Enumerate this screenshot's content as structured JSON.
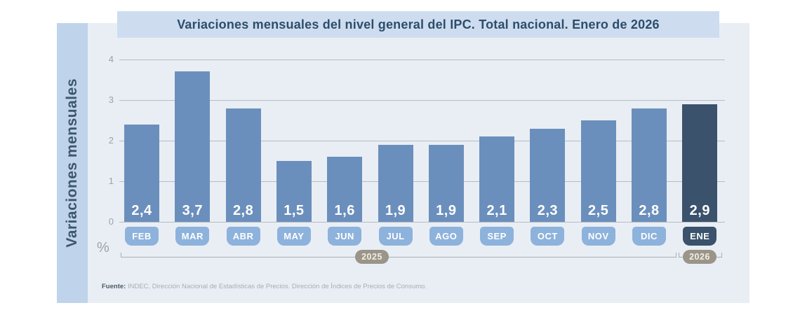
{
  "title": "Variaciones mensuales del nivel general del IPC. Total nacional. Enero de 2026",
  "y_axis_label": "Variaciones mensuales",
  "unit_label": "%",
  "source": {
    "prefix": "Fuente:",
    "text": " INDEC, Dirección Nacional de Estadísticas de Precios. Dirección de Índices de Precios de Consumo."
  },
  "chart_data": {
    "type": "bar",
    "title": "Variaciones mensuales del nivel general del IPC. Total nacional. Enero de 2026",
    "ylabel": "Variaciones mensuales",
    "unit": "%",
    "categories": [
      "FEB",
      "MAR",
      "ABR",
      "MAY",
      "JUN",
      "JUL",
      "AGO",
      "SEP",
      "OCT",
      "NOV",
      "DIC",
      "ENE"
    ],
    "values": [
      2.4,
      3.7,
      2.8,
      1.5,
      1.6,
      1.9,
      1.9,
      2.1,
      2.3,
      2.5,
      2.8,
      2.9
    ],
    "value_labels": [
      "2,4",
      "3,7",
      "2,8",
      "1,5",
      "1,6",
      "1,9",
      "1,9",
      "2,1",
      "2,3",
      "2,5",
      "2,8",
      "2,9"
    ],
    "ylim": [
      0,
      4
    ],
    "yticks": [
      0,
      1,
      2,
      3,
      4
    ],
    "grid": true,
    "legend_position": "none",
    "highlight_index": 11,
    "year_groups": [
      {
        "label": "2025",
        "from": "FEB",
        "to": "DIC"
      },
      {
        "label": "2026",
        "from": "ENE",
        "to": "ENE"
      }
    ],
    "colors": {
      "bar": "#6b8fbc",
      "bar_highlight": "#3a526b",
      "month_tag": "#8db2dc",
      "month_tag_highlight": "#3a526b",
      "year_pill": "#9a9489",
      "panel_bg": "#e9eef5",
      "banner_bg": "#cdddef",
      "side_strip_bg": "#bfd4ea",
      "title_text": "#2e4d6b"
    }
  }
}
